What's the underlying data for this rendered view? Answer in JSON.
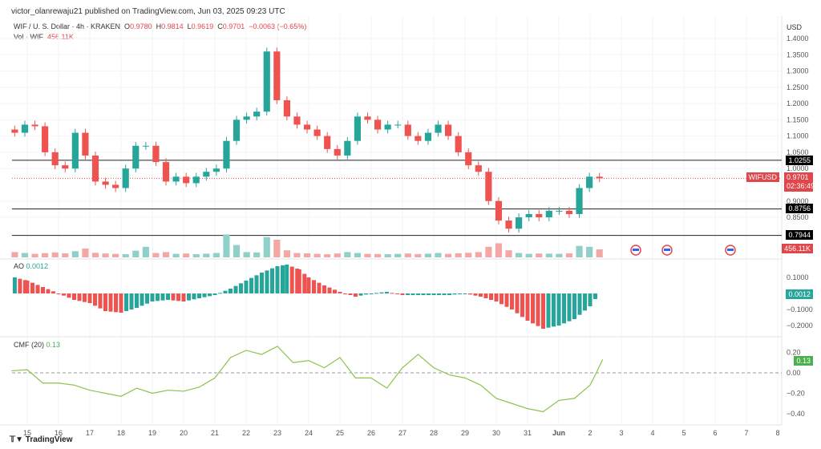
{
  "header": {
    "published": "victor_olanrewaju21 published on TradingView.com, Jun 03, 2025 09:23 UTC"
  },
  "legend": {
    "symbol": "WIF / U. S. Dollar · 4h · KRAKEN",
    "o_label": "O",
    "o": "0.9780",
    "h_label": "H",
    "h": "0.9814",
    "l_label": "L",
    "l": "0.9619",
    "c_label": "C",
    "c": "0.9701",
    "change": "−0.0063 (−0.65%)",
    "vol_label": "Vol · WIF",
    "vol": "456.11K"
  },
  "colors": {
    "up": "#26a69a",
    "down": "#ef5350",
    "vol_up": "#8fd0c8",
    "vol_down": "#f4a8a6",
    "cmf": "#8bc34a"
  },
  "price_axis": {
    "currency": "USD",
    "ticks": [
      "1.4000",
      "1.3500",
      "1.3000",
      "1.2500",
      "1.2000",
      "1.1500",
      "1.1000",
      "1.0500",
      "1.0000",
      "0.9000",
      "0.8500"
    ],
    "levels": [
      "1.0255",
      "0.8756",
      "0.7944"
    ],
    "symbol_tag": "WIFUSD",
    "last_price": "0.9701",
    "countdown": "02:36:49",
    "vol_tag": "456.11K"
  },
  "ao": {
    "label": "AO",
    "value": "0.0012",
    "ticks": [
      "0.1000",
      "−0.1000",
      "−0.2000"
    ]
  },
  "cmf": {
    "label": "CMF (20)",
    "value": "0.13",
    "ticks": [
      "0.20",
      "0.00",
      "−0.20",
      "−0.40"
    ]
  },
  "time_axis": [
    "15",
    "16",
    "17",
    "18",
    "19",
    "20",
    "21",
    "22",
    "23",
    "24",
    "25",
    "26",
    "27",
    "28",
    "29",
    "30",
    "31",
    "Jun",
    "2",
    "3",
    "4",
    "5",
    "6",
    "7",
    "8"
  ],
  "footer": {
    "brand": "TradingView"
  },
  "chart_data": {
    "type": "candlestick",
    "closes": [
      1.11,
      1.135,
      1.13,
      1.05,
      1.01,
      1.0,
      1.11,
      1.04,
      0.96,
      0.95,
      0.94,
      1.0,
      1.07,
      1.07,
      1.02,
      0.96,
      0.975,
      0.955,
      0.975,
      0.99,
      1.0,
      1.085,
      1.15,
      1.16,
      1.175,
      1.36,
      1.21,
      1.16,
      1.135,
      1.12,
      1.1,
      1.06,
      1.04,
      1.085,
      1.16,
      1.15,
      1.12,
      1.135,
      1.135,
      1.1,
      1.085,
      1.11,
      1.135,
      1.1,
      1.05,
      1.01,
      0.99,
      0.9,
      0.84,
      0.815,
      0.85,
      0.86,
      0.85,
      0.87,
      0.87,
      0.86,
      0.94,
      0.975,
      0.9701
    ],
    "volumes_k": [
      300,
      250,
      200,
      240,
      280,
      230,
      350,
      500,
      260,
      220,
      200,
      180,
      380,
      600,
      250,
      300,
      200,
      220,
      180,
      210,
      250,
      1300,
      700,
      300,
      280,
      1150,
      1000,
      400,
      250,
      230,
      200,
      180,
      220,
      300,
      250,
      200,
      190,
      180,
      200,
      220,
      190,
      210,
      250,
      200,
      230,
      260,
      300,
      600,
      800,
      400,
      250,
      200,
      220,
      210,
      200,
      230,
      650,
      600,
      456.11
    ],
    "ao": [
      [
        14.6,
        0.1
      ],
      [
        15,
        0.08
      ],
      [
        15.5,
        0.04
      ],
      [
        16,
        0.0
      ],
      [
        16.5,
        -0.04
      ],
      [
        17,
        -0.06
      ],
      [
        17.5,
        -0.11
      ],
      [
        18,
        -0.12
      ],
      [
        18.5,
        -0.09
      ],
      [
        19,
        -0.05
      ],
      [
        19.5,
        -0.04
      ],
      [
        20,
        -0.05
      ],
      [
        20.5,
        -0.03
      ],
      [
        21,
        -0.01
      ],
      [
        21.5,
        0.03
      ],
      [
        22,
        0.08
      ],
      [
        22.5,
        0.13
      ],
      [
        23,
        0.17
      ],
      [
        23.3,
        0.18
      ],
      [
        23.7,
        0.15
      ],
      [
        24,
        0.1
      ],
      [
        24.5,
        0.05
      ],
      [
        25,
        0.01
      ],
      [
        25.5,
        -0.02
      ],
      [
        26,
        0.0
      ],
      [
        26.5,
        0.01
      ],
      [
        27,
        -0.01
      ],
      [
        27.5,
        -0.01
      ],
      [
        28,
        -0.01
      ],
      [
        28.5,
        -0.01
      ],
      [
        29,
        0.0
      ],
      [
        29.5,
        -0.02
      ],
      [
        30,
        -0.05
      ],
      [
        30.5,
        -0.1
      ],
      [
        31,
        -0.17
      ],
      [
        31.5,
        -0.22
      ],
      [
        32,
        -0.2
      ],
      [
        32.5,
        -0.16
      ],
      [
        33,
        -0.08
      ],
      [
        33.3,
        0.0012
      ]
    ],
    "cmf": [
      [
        14.5,
        0.02
      ],
      [
        15,
        0.03
      ],
      [
        15.5,
        -0.1
      ],
      [
        16,
        -0.1
      ],
      [
        16.5,
        -0.12
      ],
      [
        17,
        -0.17
      ],
      [
        17.5,
        -0.2
      ],
      [
        18,
        -0.23
      ],
      [
        18.5,
        -0.15
      ],
      [
        19,
        -0.2
      ],
      [
        19.5,
        -0.17
      ],
      [
        20,
        -0.18
      ],
      [
        20.5,
        -0.14
      ],
      [
        21,
        -0.05
      ],
      [
        21.5,
        0.15
      ],
      [
        22,
        0.22
      ],
      [
        22.5,
        0.18
      ],
      [
        23,
        0.26
      ],
      [
        23.5,
        0.1
      ],
      [
        24,
        0.12
      ],
      [
        24.5,
        0.05
      ],
      [
        25,
        0.15
      ],
      [
        25.5,
        -0.05
      ],
      [
        26,
        -0.05
      ],
      [
        26.5,
        -0.15
      ],
      [
        27,
        0.05
      ],
      [
        27.5,
        0.18
      ],
      [
        28,
        0.05
      ],
      [
        28.5,
        -0.02
      ],
      [
        29,
        -0.05
      ],
      [
        29.5,
        -0.12
      ],
      [
        30,
        -0.25
      ],
      [
        30.5,
        -0.3
      ],
      [
        31,
        -0.35
      ],
      [
        31.5,
        -0.38
      ],
      [
        32,
        -0.27
      ],
      [
        32.5,
        -0.25
      ],
      [
        33,
        -0.12
      ],
      [
        33.2,
        0.0
      ],
      [
        33.4,
        0.13
      ]
    ]
  }
}
